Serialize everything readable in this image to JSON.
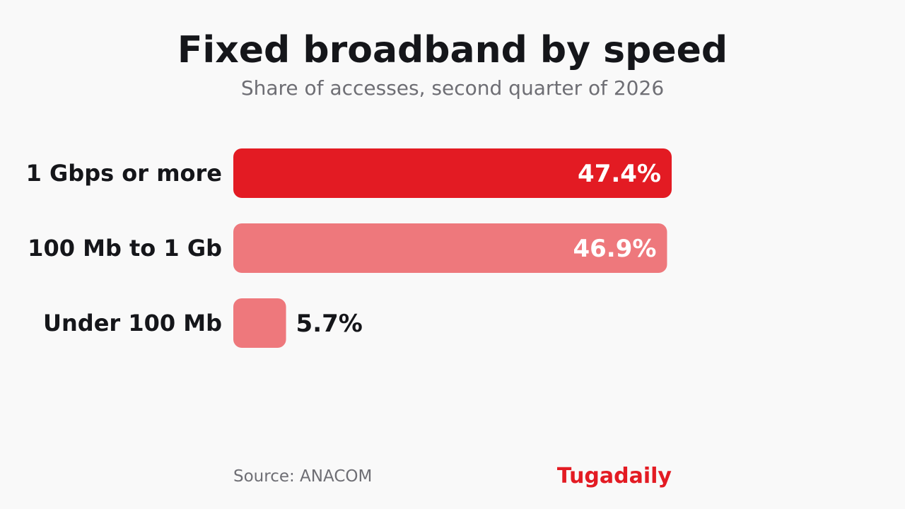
{
  "header": {
    "title": "Fixed broadband by speed",
    "subtitle": "Share of accesses, second quarter of 2026"
  },
  "footer": {
    "source": "Source: ANACOM",
    "brand": "Tugadaily"
  },
  "colors": {
    "primary": "#e31b23",
    "secondary": "#ee787c",
    "text": "#15161a",
    "value_on_bar": "#ffffff",
    "value_outside": "#15161a"
  },
  "chart_data": {
    "type": "bar",
    "orientation": "horizontal",
    "title": "Fixed broadband by speed",
    "subtitle": "Share of accesses, second quarter of 2026",
    "categories": [
      "1 Gbps or more",
      "100 Mb to 1 Gb",
      "Under 100 Mb"
    ],
    "values": [
      47.4,
      46.9,
      5.7
    ],
    "value_labels": [
      "47.4%",
      "46.9%",
      "5.7%"
    ],
    "unit": "%",
    "xlim": [
      0,
      47.4
    ],
    "grid": false,
    "legend": false
  }
}
